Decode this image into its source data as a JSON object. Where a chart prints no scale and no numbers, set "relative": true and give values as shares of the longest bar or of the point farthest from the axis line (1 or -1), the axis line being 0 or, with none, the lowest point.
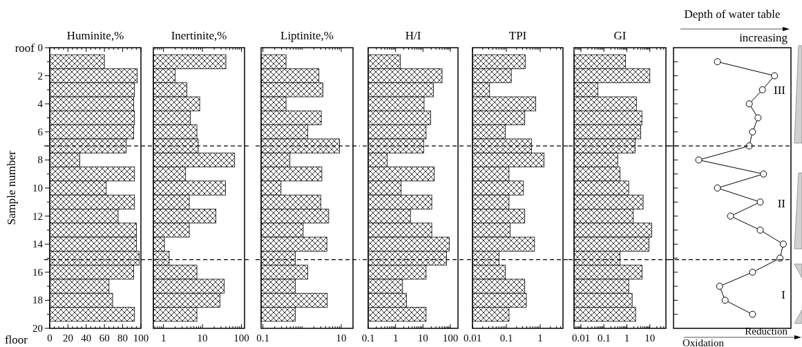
{
  "chart_data": [
    {
      "type": "bar",
      "orientation": "horizontal",
      "title": "Huminite,%",
      "ylabel": "Sample number",
      "color": "#000000",
      "x": [
        1,
        2,
        3,
        4,
        5,
        6,
        7,
        8,
        9,
        10,
        11,
        12,
        13,
        14,
        15,
        16,
        17,
        18,
        19
      ],
      "values": [
        60,
        96,
        93,
        92,
        93,
        92,
        84,
        33,
        93,
        62,
        93,
        75,
        95,
        95,
        98,
        92,
        65,
        69,
        93
      ],
      "xlim": [
        0,
        100
      ],
      "xticks": [
        0,
        {
          "value": 5,
          "label": null
        },
        {
          "value": 10,
          "label": null
        },
        {
          "value": 15,
          "label": null
        },
        20,
        {
          "value": 25,
          "label": null
        },
        {
          "value": 30,
          "label": null
        },
        {
          "value": 35,
          "label": null
        },
        40,
        {
          "value": 45,
          "label": null
        },
        {
          "value": 50,
          "label": null
        },
        {
          "value": 55,
          "label": null
        },
        60,
        {
          "value": 65,
          "label": null
        },
        {
          "value": 70,
          "label": null
        },
        {
          "value": 75,
          "label": null
        },
        80,
        {
          "value": 85,
          "label": null
        },
        {
          "value": 90,
          "label": null
        },
        {
          "value": 95,
          "label": null
        },
        100
      ],
      "ylim": [
        20,
        0
      ],
      "yticks": [
        0,
        {
          "value": 1,
          "label": null
        },
        2,
        {
          "value": 3,
          "label": null
        },
        4,
        {
          "value": 5,
          "label": null
        },
        6,
        {
          "value": 7,
          "label": null
        },
        8,
        {
          "value": 9,
          "label": null
        },
        10,
        {
          "value": 11,
          "label": null
        },
        12,
        {
          "value": 13,
          "label": null
        },
        14,
        {
          "value": 15,
          "label": null
        },
        16,
        {
          "value": 17,
          "label": null
        },
        18,
        {
          "value": 19,
          "label": null
        },
        20
      ],
      "ref_lines": [
        {
          "axis": "y",
          "value": 7,
          "line_style": "dashed"
        },
        {
          "axis": "y",
          "value": 15.1,
          "line_style": "dashed"
        }
      ],
      "annotations": [
        "roof",
        "floor"
      ]
    },
    {
      "type": "bar",
      "orientation": "horizontal",
      "title": "Inertinite,%",
      "color": "#000000",
      "log": "x",
      "tick_labels": "x",
      "x": [
        1,
        2,
        3,
        4,
        5,
        6,
        7,
        8,
        9,
        10,
        11,
        12,
        13,
        14,
        15,
        16,
        17,
        18,
        19
      ],
      "values": [
        40,
        2.0,
        4.0,
        8.5,
        4.9,
        7.2,
        7.8,
        67,
        3.7,
        39,
        4.6,
        22,
        4.6,
        1.06,
        1.4,
        7.2,
        36,
        28,
        7.2
      ],
      "xlim": [
        0.55,
        120
      ],
      "xticks": [
        {
          "value": 0.6,
          "label": null
        },
        {
          "value": 0.7,
          "label": null
        },
        {
          "value": 0.8,
          "label": null
        },
        {
          "value": 0.9,
          "label": null
        },
        1,
        {
          "value": 2,
          "label": null
        },
        {
          "value": 3,
          "label": null
        },
        {
          "value": 4,
          "label": null
        },
        {
          "value": 5,
          "label": null
        },
        {
          "value": 6,
          "label": null
        },
        {
          "value": 7,
          "label": null
        },
        {
          "value": 8,
          "label": null
        },
        {
          "value": 9,
          "label": null
        },
        10,
        {
          "value": 20,
          "label": null
        },
        {
          "value": 30,
          "label": null
        },
        {
          "value": 40,
          "label": null
        },
        {
          "value": 50,
          "label": null
        },
        {
          "value": 60,
          "label": null
        },
        {
          "value": 70,
          "label": null
        },
        {
          "value": 80,
          "label": null
        },
        {
          "value": 90,
          "label": null
        },
        100
      ],
      "ylim": [
        20,
        0
      ],
      "ref_lines": [
        {
          "axis": "y",
          "value": 7,
          "line_style": "dashed"
        },
        {
          "axis": "y",
          "value": 15.1,
          "line_style": "dashed"
        }
      ]
    },
    {
      "type": "bar",
      "orientation": "horizontal",
      "title": "Liptinite,%",
      "color": "#000000",
      "log": "x",
      "tick_labels": "x",
      "x": [
        1,
        2,
        3,
        4,
        5,
        6,
        7,
        8,
        9,
        10,
        11,
        12,
        13,
        14,
        15,
        16,
        17,
        18,
        19
      ],
      "values": [
        0.39,
        2.7,
        3.4,
        0.39,
        3.1,
        1.4,
        9.1,
        0.49,
        3.2,
        0.29,
        3.0,
        4.8,
        1.07,
        4.3,
        0.67,
        1.4,
        0.67,
        4.4,
        0.67
      ],
      "xlim": [
        0.09,
        20
      ],
      "xticks": [
        0.1,
        {
          "value": 0.2,
          "label": null
        },
        {
          "value": 0.3,
          "label": null
        },
        {
          "value": 0.4,
          "label": null
        },
        {
          "value": 0.5,
          "label": null
        },
        {
          "value": 0.6,
          "label": null
        },
        {
          "value": 0.7,
          "label": null
        },
        {
          "value": 0.8,
          "label": null
        },
        {
          "value": 0.9,
          "label": null
        },
        {
          "value": 1,
          "label": null
        },
        {
          "value": 2,
          "label": null
        },
        {
          "value": 3,
          "label": null
        },
        {
          "value": 4,
          "label": null
        },
        {
          "value": 5,
          "label": null
        },
        {
          "value": 6,
          "label": null
        },
        {
          "value": 7,
          "label": null
        },
        {
          "value": 8,
          "label": null
        },
        {
          "value": 9,
          "label": null
        },
        10
      ],
      "ylim": [
        20,
        0
      ],
      "ref_lines": [
        {
          "axis": "y",
          "value": 7,
          "line_style": "dashed"
        },
        {
          "axis": "y",
          "value": 15.1,
          "line_style": "dashed"
        }
      ]
    },
    {
      "type": "bar",
      "orientation": "horizontal",
      "title": "H/I",
      "color": "#000000",
      "log": "x",
      "tick_labels": "x",
      "x": [
        1,
        2,
        3,
        4,
        5,
        6,
        7,
        8,
        9,
        10,
        11,
        12,
        13,
        14,
        15,
        16,
        17,
        18,
        19
      ],
      "values": [
        1.5,
        50,
        24,
        11,
        19,
        13,
        10.6,
        0.49,
        26,
        1.6,
        21,
        3.5,
        21,
        91,
        73,
        13,
        1.8,
        2.5,
        13
      ],
      "xlim": [
        0.1,
        190
      ],
      "xticks": [
        0.1,
        {
          "value": 0.2,
          "label": null
        },
        {
          "value": 0.3,
          "label": null
        },
        {
          "value": 0.4,
          "label": null
        },
        {
          "value": 0.5,
          "label": null
        },
        {
          "value": 0.6,
          "label": null
        },
        {
          "value": 0.7,
          "label": null
        },
        {
          "value": 0.8,
          "label": null
        },
        {
          "value": 0.9,
          "label": null
        },
        1,
        {
          "value": 2,
          "label": null
        },
        {
          "value": 3,
          "label": null
        },
        {
          "value": 4,
          "label": null
        },
        {
          "value": 5,
          "label": null
        },
        {
          "value": 6,
          "label": null
        },
        {
          "value": 7,
          "label": null
        },
        {
          "value": 8,
          "label": null
        },
        {
          "value": 9,
          "label": null
        },
        10,
        {
          "value": 20,
          "label": null
        },
        {
          "value": 30,
          "label": null
        },
        {
          "value": 40,
          "label": null
        },
        {
          "value": 50,
          "label": null
        },
        {
          "value": 60,
          "label": null
        },
        {
          "value": 70,
          "label": null
        },
        {
          "value": 80,
          "label": null
        },
        {
          "value": 90,
          "label": null
        },
        100
      ],
      "ylim": [
        20,
        0
      ],
      "ref_lines": [
        {
          "axis": "y",
          "value": 7,
          "line_style": "dashed"
        },
        {
          "axis": "y",
          "value": 15.1,
          "line_style": "dashed"
        }
      ]
    },
    {
      "type": "bar",
      "orientation": "horizontal",
      "title": "TPI",
      "color": "#000000",
      "log": "x",
      "tick_labels": "x",
      "x": [
        1,
        2,
        3,
        4,
        5,
        6,
        7,
        8,
        9,
        10,
        11,
        12,
        13,
        14,
        15,
        16,
        17,
        18,
        19
      ],
      "values": [
        0.36,
        0.14,
        0.032,
        0.74,
        0.35,
        0.094,
        0.55,
        1.3,
        0.12,
        0.32,
        0.12,
        0.35,
        0.13,
        0.68,
        0.061,
        0.094,
        0.35,
        0.39,
        0.12
      ],
      "xlim": [
        0.01,
        4.7
      ],
      "xticks": [
        0.01,
        {
          "value": 0.02,
          "label": null
        },
        {
          "value": 0.03,
          "label": null
        },
        {
          "value": 0.04,
          "label": null
        },
        {
          "value": 0.05,
          "label": null
        },
        {
          "value": 0.06,
          "label": null
        },
        {
          "value": 0.07,
          "label": null
        },
        {
          "value": 0.08,
          "label": null
        },
        {
          "value": 0.09,
          "label": null
        },
        0.1,
        {
          "value": 0.2,
          "label": null
        },
        {
          "value": 0.3,
          "label": null
        },
        {
          "value": 0.4,
          "label": null
        },
        {
          "value": 0.5,
          "label": null
        },
        {
          "value": 0.6,
          "label": null
        },
        {
          "value": 0.7,
          "label": null
        },
        {
          "value": 0.8,
          "label": null
        },
        {
          "value": 0.9,
          "label": null
        },
        1,
        {
          "value": 2,
          "label": null
        },
        {
          "value": 3,
          "label": null
        },
        {
          "value": 4,
          "label": null
        }
      ],
      "ylim": [
        20,
        0
      ],
      "ref_lines": [
        {
          "axis": "y",
          "value": 7,
          "line_style": "dashed"
        },
        {
          "axis": "y",
          "value": 15.1,
          "line_style": "dashed"
        }
      ]
    },
    {
      "type": "bar",
      "orientation": "horizontal",
      "title": "GI",
      "color": "#000000",
      "log": "x",
      "tick_labels": "x",
      "x": [
        1,
        2,
        3,
        4,
        5,
        6,
        7,
        8,
        9,
        10,
        11,
        12,
        13,
        14,
        15,
        16,
        17,
        18,
        19
      ],
      "values": [
        0.87,
        10,
        0.054,
        2.6,
        4.5,
        4.0,
        2.3,
        0.4,
        0.5,
        1.2,
        5.1,
        1.9,
        12,
        9.1,
        0.5,
        4.6,
        1.2,
        1.7,
        2.4
      ],
      "xlim": [
        0.005,
        50
      ],
      "xticks": [
        {
          "value": 0.006,
          "label": null
        },
        {
          "value": 0.007,
          "label": null
        },
        {
          "value": 0.008,
          "label": null
        },
        {
          "value": 0.009,
          "label": null
        },
        0.01,
        {
          "value": 0.02,
          "label": null
        },
        {
          "value": 0.03,
          "label": null
        },
        {
          "value": 0.04,
          "label": null
        },
        {
          "value": 0.05,
          "label": null
        },
        {
          "value": 0.06,
          "label": null
        },
        {
          "value": 0.07,
          "label": null
        },
        {
          "value": 0.08,
          "label": null
        },
        {
          "value": 0.09,
          "label": null
        },
        0.1,
        {
          "value": 0.2,
          "label": null
        },
        {
          "value": 0.3,
          "label": null
        },
        {
          "value": 0.4,
          "label": null
        },
        {
          "value": 0.5,
          "label": null
        },
        {
          "value": 0.6,
          "label": null
        },
        {
          "value": 0.7,
          "label": null
        },
        {
          "value": 0.8,
          "label": null
        },
        {
          "value": 0.9,
          "label": null
        },
        1,
        {
          "value": 2,
          "label": null
        },
        {
          "value": 3,
          "label": null
        },
        {
          "value": 4,
          "label": null
        },
        {
          "value": 5,
          "label": null
        },
        {
          "value": 6,
          "label": null
        },
        {
          "value": 7,
          "label": null
        },
        {
          "value": 8,
          "label": null
        },
        {
          "value": 9,
          "label": null
        },
        10,
        {
          "value": 20,
          "label": null
        },
        {
          "value": 30,
          "label": null
        },
        {
          "value": 40,
          "label": null
        }
      ],
      "ylim": [
        20,
        0
      ],
      "ref_lines": [
        {
          "axis": "y",
          "value": 7,
          "line_style": "dashed"
        },
        {
          "axis": "y",
          "value": 15.1,
          "line_style": "dashed"
        }
      ]
    },
    {
      "type": "line",
      "orientation": "horizontal",
      "relative": true,
      "marker": "circle",
      "color": "#000000",
      "tick_labels": false,
      "title": "Depth of water table",
      "subtitle": "increasing",
      "x": [
        1,
        2,
        3,
        4,
        5,
        6,
        7,
        8,
        9,
        10,
        11,
        12,
        13,
        14,
        15,
        16,
        17,
        18,
        19
      ],
      "values": [
        0.4,
        0.92,
        0.81,
        0.69,
        0.77,
        0.72,
        0.69,
        0.23,
        0.82,
        0.4,
        0.79,
        0.52,
        0.79,
        1,
        0.97,
        0.72,
        0.42,
        0.47,
        0.72
      ],
      "ylim": [
        20,
        0
      ],
      "yticks": [
        {
          "value": 1,
          "label": null
        },
        {
          "value": 2,
          "label": null
        },
        {
          "value": 3,
          "label": null
        },
        {
          "value": 4,
          "label": null
        },
        {
          "value": 5,
          "label": null
        },
        {
          "value": 6,
          "label": null
        },
        {
          "value": 7,
          "label": null
        },
        {
          "value": 8,
          "label": null
        },
        {
          "value": 9,
          "label": null
        },
        {
          "value": 10,
          "label": null
        },
        {
          "value": 11,
          "label": null
        },
        {
          "value": 12,
          "label": null
        },
        {
          "value": 13,
          "label": null
        },
        {
          "value": 14,
          "label": null
        },
        {
          "value": 15,
          "label": null
        },
        {
          "value": 16,
          "label": null
        },
        {
          "value": 17,
          "label": null
        },
        {
          "value": 18,
          "label": null
        },
        {
          "value": 19,
          "label": null
        }
      ],
      "ref_lines": [
        {
          "axis": "y",
          "value": 7,
          "line_style": "dashed"
        },
        {
          "axis": "y",
          "value": 15.1,
          "line_style": "dashed"
        }
      ],
      "annotations": [
        "III",
        "II",
        "I",
        "Reduction",
        "Oxidation"
      ]
    }
  ]
}
